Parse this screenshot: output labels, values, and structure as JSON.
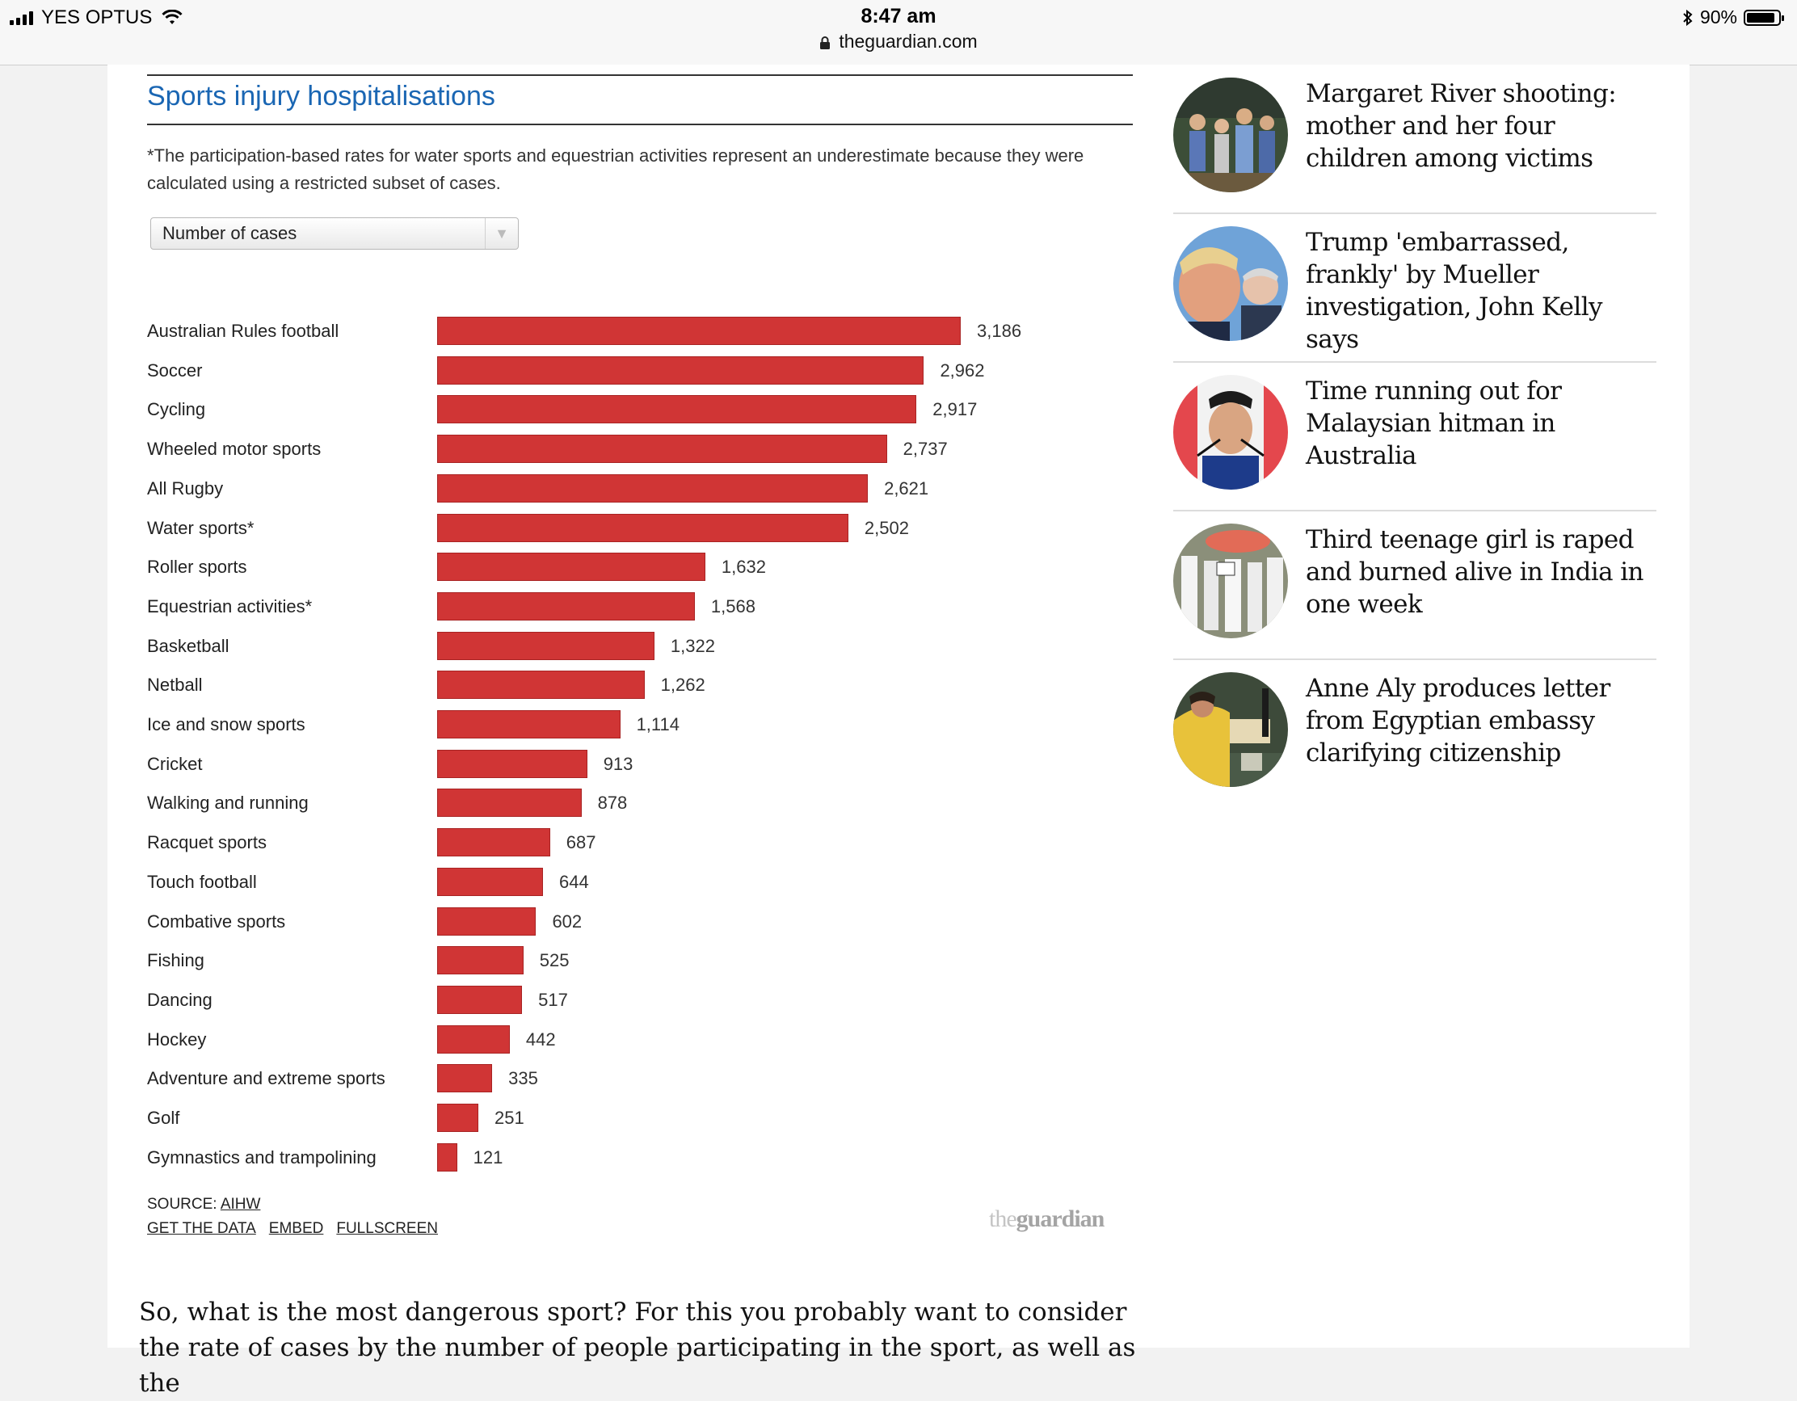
{
  "status_bar": {
    "carrier": "YES OPTUS",
    "time": "8:47 am",
    "url": "theguardian.com",
    "battery": "90%",
    "battery_level": 0.9
  },
  "chart": {
    "title": "Sports injury hospitalisations",
    "note": "*The participation-based rates for water sports and equestrian activities represent an underestimate because they were calculated using a restricted subset of cases.",
    "select_value": "Number of cases",
    "source_label": "SOURCE:",
    "source_link": "AIHW",
    "links": [
      "GET THE DATA",
      "EMBED",
      "FULLSCREEN"
    ],
    "logo": {
      "the": "the",
      "guardian": "guardian"
    },
    "bar_color": "#d03535",
    "title_color": "#1a66b3"
  },
  "chart_data": {
    "type": "bar",
    "orientation": "horizontal",
    "title": "Sports injury hospitalisations",
    "categories": [
      "Australian Rules football",
      "Soccer",
      "Cycling",
      "Wheeled motor sports",
      "All Rugby",
      "Water sports*",
      "Roller sports",
      "Equestrian activities*",
      "Basketball",
      "Netball",
      "Ice and snow sports",
      "Cricket",
      "Walking and running",
      "Racquet sports",
      "Touch football",
      "Combative sports",
      "Fishing",
      "Dancing",
      "Hockey",
      "Adventure and extreme sports",
      "Golf",
      "Gymnastics and trampolining"
    ],
    "values": [
      3186,
      2962,
      2917,
      2737,
      2621,
      2502,
      1632,
      1568,
      1322,
      1262,
      1114,
      913,
      878,
      687,
      644,
      602,
      525,
      517,
      442,
      335,
      251,
      121
    ],
    "value_labels": [
      "3,186",
      "2,962",
      "2,917",
      "2,737",
      "2,621",
      "2,502",
      "1,632",
      "1,568",
      "1,322",
      "1,262",
      "1,114",
      "913",
      "878",
      "687",
      "644",
      "602",
      "525",
      "517",
      "442",
      "335",
      "251",
      "121"
    ],
    "xlim": [
      0,
      3186
    ],
    "grid": false,
    "legend": "none"
  },
  "sidebar": {
    "items": [
      {
        "headline": "Margaret River shooting: mother and her four children among victims",
        "icon": "family-photo-icon"
      },
      {
        "headline": "Trump 'embarrassed, frankly' by Mueller investigation, John Kelly says",
        "icon": "trump-kelly-photo-icon"
      },
      {
        "headline": "Time running out for Malaysian hitman in Australia",
        "icon": "speaker-photo-icon"
      },
      {
        "headline": "Third teenage girl is raped and burned alive in India in one week",
        "icon": "protest-photo-icon"
      },
      {
        "headline": "Anne Aly produces letter from Egyptian embassy clarifying citizenship",
        "icon": "parliament-photo-icon"
      }
    ]
  },
  "article": {
    "text": "So, what is the most dangerous sport? For this you probably want to consider the rate of cases by the number of people participating in the sport, as well as the"
  }
}
